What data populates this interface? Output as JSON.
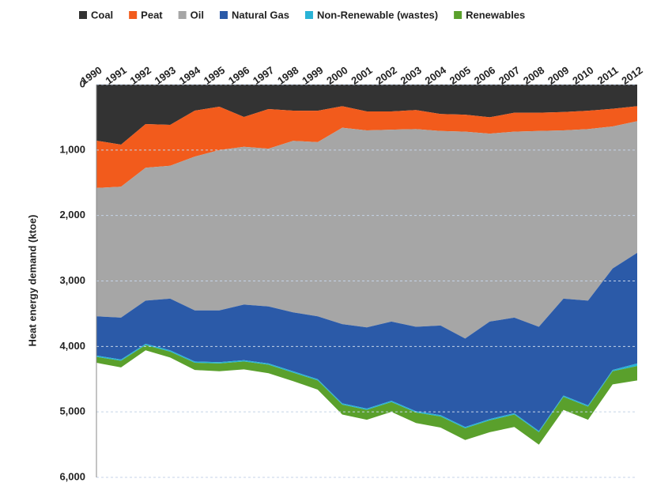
{
  "chart_data": {
    "type": "stacked_area",
    "y_label": "Heat energy demand (ktoe)",
    "categories": [
      "1990",
      "1991",
      "1992",
      "1993",
      "1994",
      "1995",
      "1996",
      "1997",
      "1998",
      "1999",
      "2000",
      "2001",
      "2002",
      "2003",
      "2004",
      "2005",
      "2006",
      "2007",
      "2008",
      "2009",
      "2010",
      "2011",
      "2012"
    ],
    "series": [
      {
        "name": "Coal",
        "color": "#333333",
        "values": [
          857,
          918,
          604,
          616,
          399,
          338,
          495,
          374,
          399,
          400,
          330,
          410,
          410,
          390,
          450,
          460,
          500,
          430,
          430,
          420,
          400,
          370,
          330
        ]
      },
      {
        "name": "Peat",
        "color": "#f25b1c",
        "values": [
          723,
          642,
          666,
          624,
          701,
          662,
          455,
          606,
          461,
          480,
          330,
          290,
          280,
          290,
          260,
          260,
          250,
          290,
          280,
          280,
          280,
          270,
          230
        ]
      },
      {
        "name": "Oil",
        "color": "#a6a6a6",
        "values": [
          1960,
          2000,
          2030,
          2030,
          2350,
          2450,
          2410,
          2410,
          2620,
          2660,
          3000,
          3010,
          2930,
          3020,
          2970,
          3160,
          2870,
          2840,
          2990,
          2570,
          2620,
          2170,
          2010
        ]
      },
      {
        "name": "Natural Gas",
        "color": "#2b5aa8",
        "values": [
          600,
          640,
          660,
          790,
          780,
          790,
          850,
          870,
          900,
          960,
          1210,
          1240,
          1210,
          1290,
          1370,
          1350,
          1490,
          1460,
          1590,
          1480,
          1600,
          1550,
          1690
        ]
      },
      {
        "name": "Non-Renewable (wastes)",
        "color": "#29b3d6",
        "values": [
          20,
          20,
          20,
          20,
          20,
          20,
          20,
          20,
          20,
          20,
          20,
          20,
          20,
          20,
          20,
          20,
          20,
          20,
          20,
          20,
          20,
          20,
          40
        ]
      },
      {
        "name": "Renewables",
        "color": "#5aa02c",
        "values": [
          90,
          100,
          80,
          90,
          110,
          120,
          120,
          130,
          130,
          140,
          150,
          150,
          150,
          160,
          170,
          180,
          180,
          190,
          190,
          200,
          200,
          200,
          220
        ]
      }
    ],
    "ylim": [
      0,
      6000
    ],
    "yticks": [
      0,
      {
        "value": 1000,
        "label": "1,000"
      },
      {
        "value": 2000,
        "label": "2,000"
      },
      {
        "value": 3000,
        "label": "3,000"
      },
      {
        "value": 4000,
        "label": "4,000"
      },
      {
        "value": 5000,
        "label": "5,000"
      },
      {
        "value": 6000,
        "label": "6,000"
      }
    ],
    "y_inverted": true,
    "grid": true,
    "legend": "top"
  }
}
